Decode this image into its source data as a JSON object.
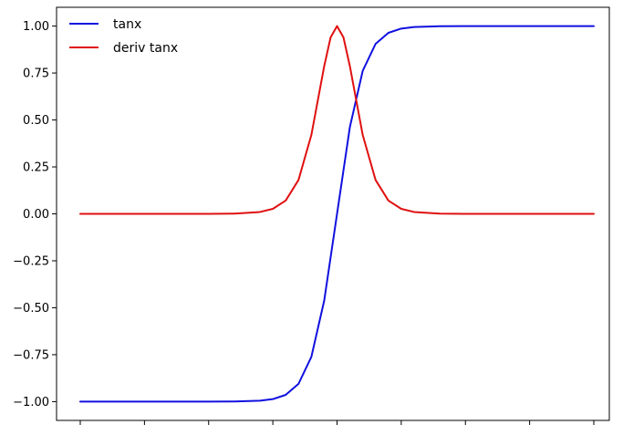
{
  "chart_data": {
    "type": "line",
    "title": "",
    "xlabel": "",
    "ylabel": "",
    "x_range": [
      -10,
      10
    ],
    "x_ticks": [
      -10,
      -7.5,
      -5,
      -2.5,
      0,
      2.5,
      5,
      7.5,
      10
    ],
    "x_tick_labels_visible": false,
    "ylim": [
      -1.1,
      1.1
    ],
    "y_ticks": [
      -1.0,
      -0.75,
      -0.5,
      -0.25,
      0.0,
      0.25,
      0.5,
      0.75,
      1.0
    ],
    "y_tick_labels": [
      "−1.00",
      "−0.75",
      "−0.50",
      "−0.25",
      "0.00",
      "0.25",
      "0.50",
      "0.75",
      "1.00"
    ],
    "grid": false,
    "legend_position": "top-left",
    "series": [
      {
        "name": "tanx",
        "color": "#1010e0",
        "x": [
          -10,
          -9,
          -8,
          -7,
          -6,
          -5,
          -4,
          -3,
          -2.5,
          -2,
          -1.5,
          -1,
          -0.5,
          0,
          0.5,
          1,
          1.5,
          2,
          2.5,
          3,
          4,
          5,
          6,
          7,
          8,
          9,
          10
        ],
        "y": [
          -1.0,
          -1.0,
          -1.0,
          -1.0,
          -1.0,
          -0.9999,
          -0.9993,
          -0.9951,
          -0.9866,
          -0.964,
          -0.9051,
          -0.7616,
          -0.4621,
          0.0,
          0.4621,
          0.7616,
          0.9051,
          0.964,
          0.9866,
          0.9951,
          0.9993,
          0.9999,
          1.0,
          1.0,
          1.0,
          1.0,
          1.0
        ]
      },
      {
        "name": "deriv tanx",
        "color": "#e01010",
        "x": [
          -10,
          -9,
          -8,
          -7,
          -6,
          -5,
          -4,
          -3,
          -2.5,
          -2,
          -1.5,
          -1,
          -0.5,
          -0.25,
          0,
          0.25,
          0.5,
          1,
          1.5,
          2,
          2.5,
          3,
          4,
          5,
          6,
          7,
          8,
          9,
          10
        ],
        "y": [
          0.0,
          0.0,
          0.0,
          0.0,
          0.0,
          0.0002,
          0.0013,
          0.0099,
          0.0266,
          0.0707,
          0.1807,
          0.42,
          0.7864,
          0.9397,
          1.0,
          0.9397,
          0.7864,
          0.42,
          0.1807,
          0.0707,
          0.0266,
          0.0099,
          0.0013,
          0.0002,
          0.0,
          0.0,
          0.0,
          0.0,
          0.0
        ]
      }
    ]
  }
}
